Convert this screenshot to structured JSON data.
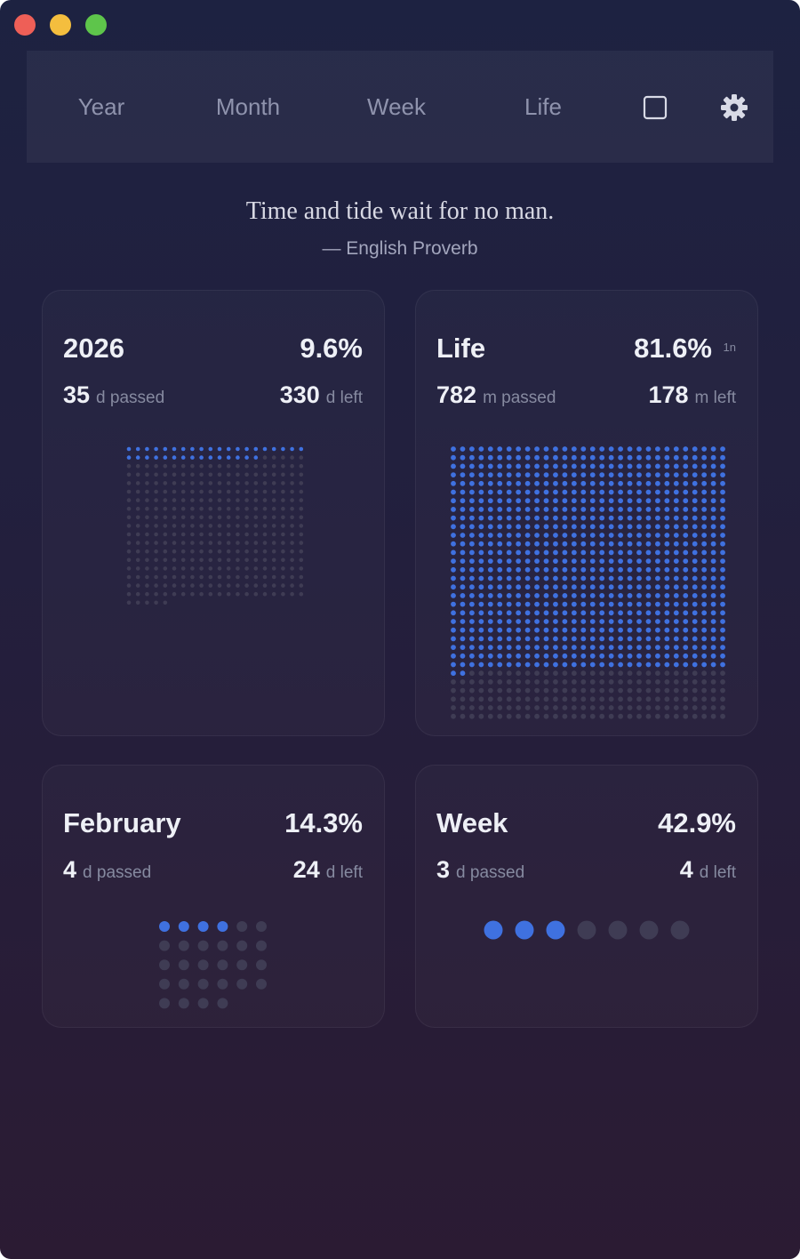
{
  "nav": {
    "tabs": [
      "Year",
      "Month",
      "Week",
      "Life"
    ]
  },
  "quote": {
    "text": "Time and tide wait for no man.",
    "author": "— English Proverb"
  },
  "cards": [
    {
      "title": "2026",
      "percent": "9.6%",
      "passed": 35,
      "passed_unit": "d passed",
      "left": 330,
      "left_unit": "d left"
    },
    {
      "title": "Life",
      "percent": "81.6%",
      "note": "1n",
      "passed": 782,
      "passed_unit": "m passed",
      "left": 178,
      "left_unit": "m left"
    },
    {
      "title": "February",
      "percent": "14.3%",
      "passed": 4,
      "passed_unit": "d passed",
      "left": 24,
      "left_unit": "d left"
    },
    {
      "title": "Week",
      "percent": "42.9%",
      "passed": 3,
      "passed_unit": "d passed",
      "left": 4,
      "left_unit": "d left"
    }
  ]
}
